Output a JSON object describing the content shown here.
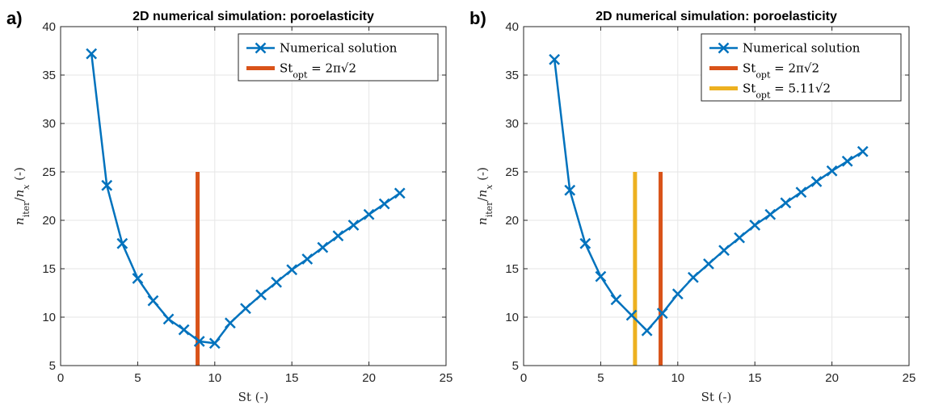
{
  "colors": {
    "series": "#0072BD",
    "orange": "#D95319",
    "yellow": "#EDB120",
    "grid": "#e6e6e6",
    "axis": "#262626"
  },
  "chart_data": [
    {
      "panel_label": "a)",
      "type": "line",
      "title": "2D numerical simulation: poroelasticity",
      "xlabel": "St (-)",
      "ylabel": "n_iter/n_x (-)",
      "xlim": [
        0,
        25
      ],
      "ylim": [
        5,
        40
      ],
      "xticks": [
        0,
        5,
        10,
        15,
        20,
        25
      ],
      "yticks": [
        5,
        10,
        15,
        20,
        25,
        30,
        35,
        40
      ],
      "grid": true,
      "legend_position": "top-right",
      "series": [
        {
          "name": "Numerical solution",
          "color": "#0072BD",
          "marker": "x",
          "x": [
            2,
            3,
            4,
            5,
            6,
            7,
            8,
            9,
            10,
            11,
            12,
            13,
            14,
            15,
            16,
            17,
            18,
            19,
            20,
            21,
            22
          ],
          "y": [
            37.2,
            23.6,
            17.6,
            14.0,
            11.7,
            9.8,
            8.7,
            7.5,
            7.3,
            9.4,
            10.9,
            12.3,
            13.6,
            14.9,
            16.0,
            17.2,
            18.4,
            19.5,
            20.6,
            21.7,
            22.8
          ]
        }
      ],
      "vlines": [
        {
          "label_base": "St",
          "label_sub": "opt",
          "label_rest": " = 2π√2",
          "x": 8.886,
          "y_range": [
            5,
            25
          ],
          "color": "#D95319"
        }
      ]
    },
    {
      "panel_label": "b)",
      "type": "line",
      "title": "2D numerical simulation: poroelasticity",
      "xlabel": "St (-)",
      "ylabel": "n_iter/n_x (-)",
      "xlim": [
        0,
        25
      ],
      "ylim": [
        5,
        40
      ],
      "xticks": [
        0,
        5,
        10,
        15,
        20,
        25
      ],
      "yticks": [
        5,
        10,
        15,
        20,
        25,
        30,
        35,
        40
      ],
      "grid": true,
      "legend_position": "top-right",
      "series": [
        {
          "name": "Numerical solution",
          "color": "#0072BD",
          "marker": "x",
          "x": [
            2,
            3,
            4,
            5,
            6,
            7,
            8,
            9,
            10,
            11,
            12,
            13,
            14,
            15,
            16,
            17,
            18,
            19,
            20,
            21,
            22
          ],
          "y": [
            36.6,
            23.1,
            17.6,
            14.2,
            11.8,
            10.2,
            8.6,
            10.4,
            12.4,
            14.1,
            15.5,
            16.9,
            18.2,
            19.5,
            20.6,
            21.8,
            22.9,
            24.0,
            25.1,
            26.1,
            27.1
          ]
        }
      ],
      "vlines": [
        {
          "label_base": "St",
          "label_sub": "opt",
          "label_rest": " = 2π√2",
          "x": 8.886,
          "y_range": [
            5,
            25
          ],
          "color": "#D95319"
        },
        {
          "label_base": "St",
          "label_sub": "opt",
          "label_rest": " = 5.11√2",
          "x": 7.227,
          "y_range": [
            5,
            25
          ],
          "color": "#EDB120"
        }
      ]
    }
  ]
}
